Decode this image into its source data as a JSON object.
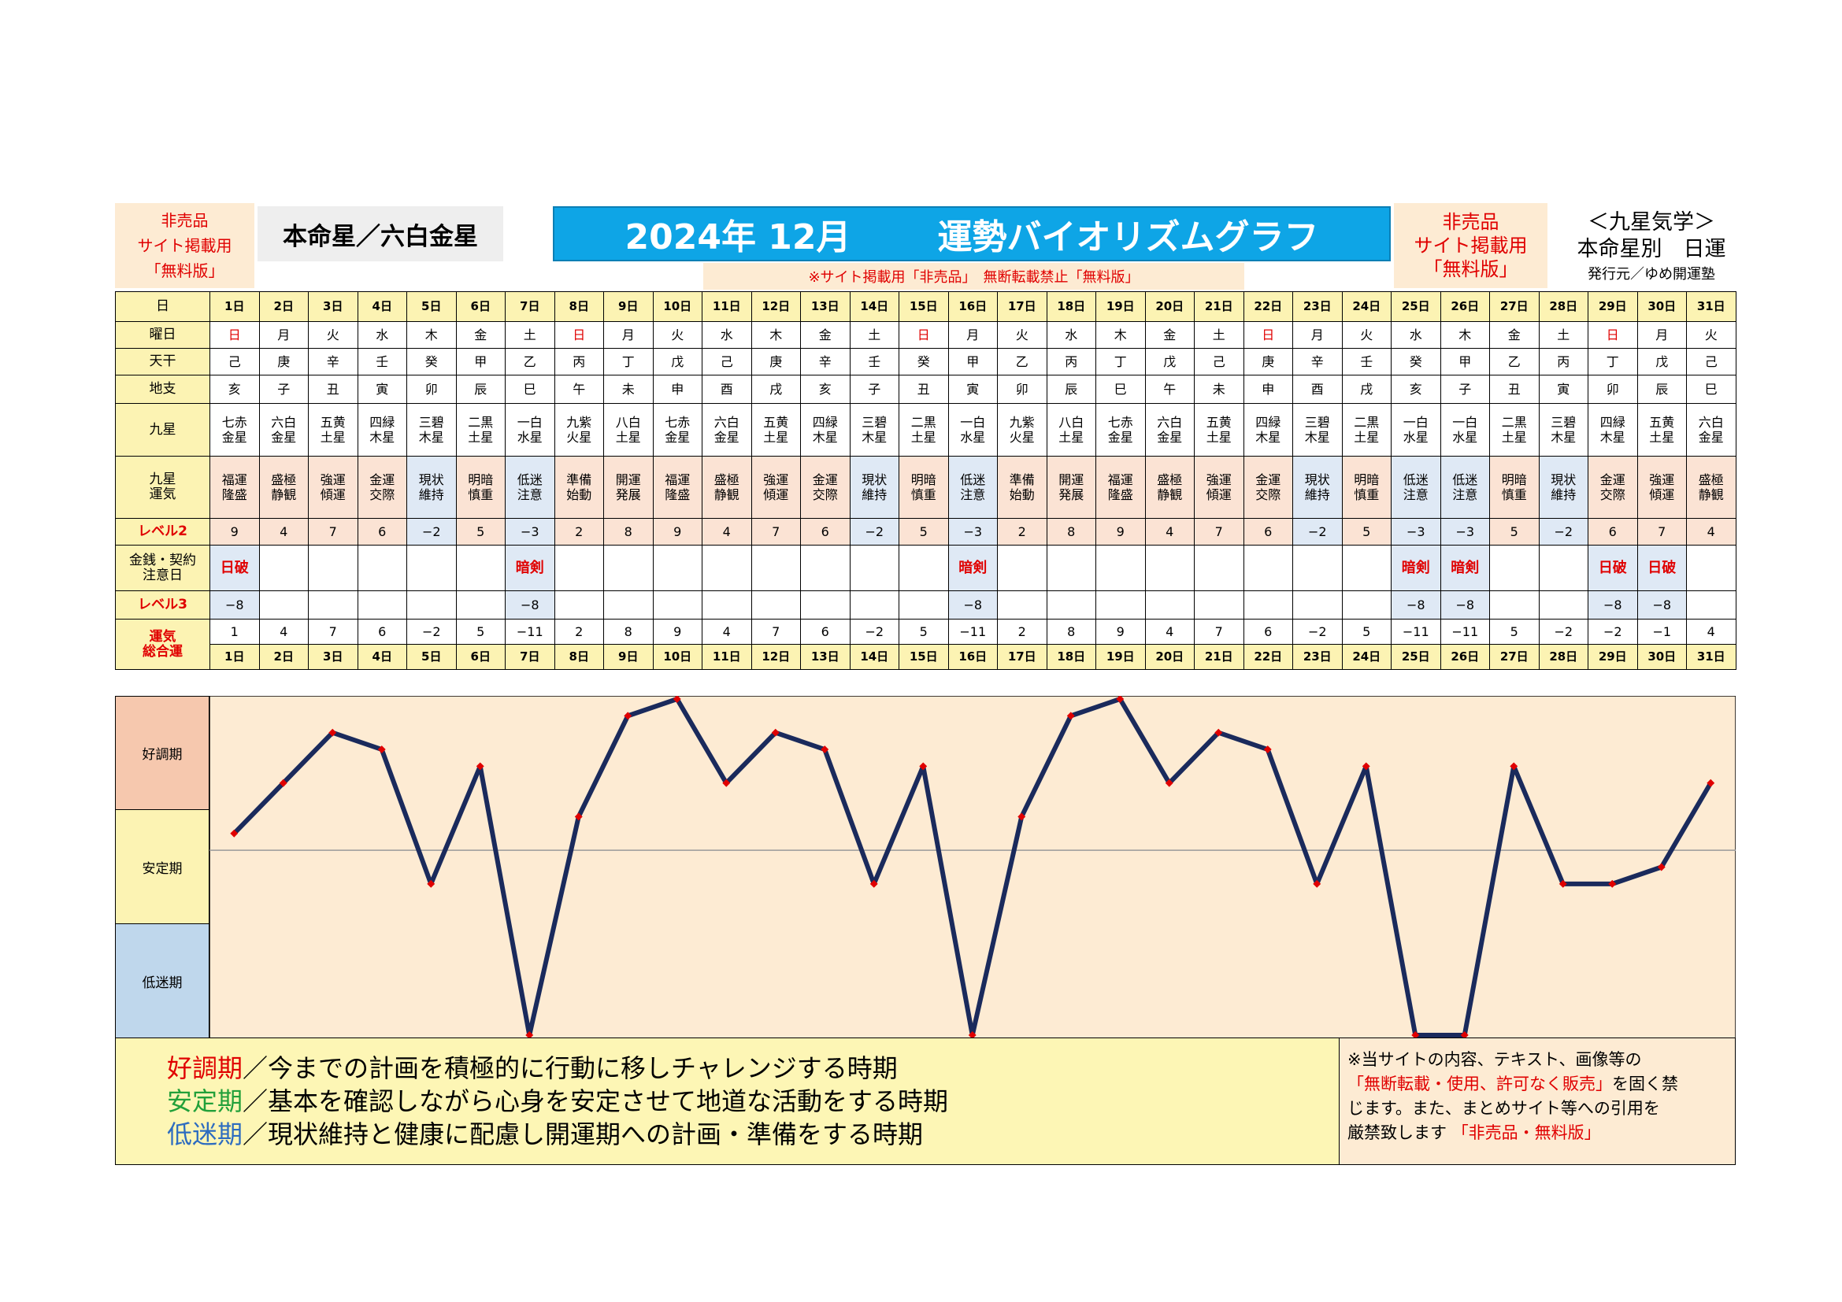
{
  "header": {
    "left_badge": [
      "非売品",
      "サイト掲載用",
      "「無料版」"
    ],
    "honmei": "本命星／六白金星",
    "title_year_month": "2024年 12月",
    "title_main": "運勢バイオリズムグラフ",
    "notice": "※サイト掲載用「非売品」　無断転載禁止「無料版」",
    "right_badge": [
      "非売品",
      "サイト掲載用",
      "「無料版」"
    ],
    "right_title": "＜九星気学＞",
    "right_subtitle": "本命星別　日運",
    "publisher": "発行元／ゆめ開運塾"
  },
  "row_labels": {
    "day": "日",
    "weekday": "曜日",
    "tenkan": "天干",
    "chishi": "地支",
    "kusei": "九星",
    "kusei_unki": [
      "九星",
      "運気"
    ],
    "level2": "レベル2",
    "money": [
      "金銭・契約",
      "注意日"
    ],
    "level3": "レベル3",
    "total": [
      "運気",
      "総合運"
    ]
  },
  "days": [
    "1日",
    "2日",
    "3日",
    "4日",
    "5日",
    "6日",
    "7日",
    "8日",
    "9日",
    "10日",
    "11日",
    "12日",
    "13日",
    "14日",
    "15日",
    "16日",
    "17日",
    "18日",
    "19日",
    "20日",
    "21日",
    "22日",
    "23日",
    "24日",
    "25日",
    "26日",
    "27日",
    "28日",
    "29日",
    "30日",
    "31日"
  ],
  "weekdays": [
    "日",
    "月",
    "火",
    "水",
    "木",
    "金",
    "土",
    "日",
    "月",
    "火",
    "水",
    "木",
    "金",
    "土",
    "日",
    "月",
    "火",
    "水",
    "木",
    "金",
    "土",
    "日",
    "月",
    "火",
    "水",
    "木",
    "金",
    "土",
    "日",
    "月",
    "火"
  ],
  "tenkan": [
    "己",
    "庚",
    "辛",
    "壬",
    "癸",
    "甲",
    "乙",
    "丙",
    "丁",
    "戊",
    "己",
    "庚",
    "辛",
    "壬",
    "癸",
    "甲",
    "乙",
    "丙",
    "丁",
    "戊",
    "己",
    "庚",
    "辛",
    "壬",
    "癸",
    "甲",
    "乙",
    "丙",
    "丁",
    "戊",
    "己"
  ],
  "chishi": [
    "亥",
    "子",
    "丑",
    "寅",
    "卯",
    "辰",
    "巳",
    "午",
    "未",
    "申",
    "酉",
    "戌",
    "亥",
    "子",
    "丑",
    "寅",
    "卯",
    "辰",
    "巳",
    "午",
    "未",
    "申",
    "酉",
    "戌",
    "亥",
    "子",
    "丑",
    "寅",
    "卯",
    "辰",
    "巳"
  ],
  "kusei": [
    [
      "七赤",
      "金星"
    ],
    [
      "六白",
      "金星"
    ],
    [
      "五黄",
      "土星"
    ],
    [
      "四緑",
      "木星"
    ],
    [
      "三碧",
      "木星"
    ],
    [
      "二黒",
      "土星"
    ],
    [
      "一白",
      "水星"
    ],
    [
      "九紫",
      "火星"
    ],
    [
      "八白",
      "土星"
    ],
    [
      "七赤",
      "金星"
    ],
    [
      "六白",
      "金星"
    ],
    [
      "五黄",
      "土星"
    ],
    [
      "四緑",
      "木星"
    ],
    [
      "三碧",
      "木星"
    ],
    [
      "二黒",
      "土星"
    ],
    [
      "一白",
      "水星"
    ],
    [
      "九紫",
      "火星"
    ],
    [
      "八白",
      "土星"
    ],
    [
      "七赤",
      "金星"
    ],
    [
      "六白",
      "金星"
    ],
    [
      "五黄",
      "土星"
    ],
    [
      "四緑",
      "木星"
    ],
    [
      "三碧",
      "木星"
    ],
    [
      "二黒",
      "土星"
    ],
    [
      "一白",
      "水星"
    ],
    [
      "一白",
      "水星"
    ],
    [
      "二黒",
      "土星"
    ],
    [
      "三碧",
      "木星"
    ],
    [
      "四緑",
      "木星"
    ],
    [
      "五黄",
      "土星"
    ],
    [
      "六白",
      "金星"
    ]
  ],
  "unki": [
    [
      "福運",
      "隆盛"
    ],
    [
      "盛極",
      "静観"
    ],
    [
      "強運",
      "傾運"
    ],
    [
      "金運",
      "交際"
    ],
    [
      "現状",
      "維持"
    ],
    [
      "明暗",
      "慎重"
    ],
    [
      "低迷",
      "注意"
    ],
    [
      "準備",
      "始動"
    ],
    [
      "開運",
      "発展"
    ],
    [
      "福運",
      "隆盛"
    ],
    [
      "盛極",
      "静観"
    ],
    [
      "強運",
      "傾運"
    ],
    [
      "金運",
      "交際"
    ],
    [
      "現状",
      "維持"
    ],
    [
      "明暗",
      "慎重"
    ],
    [
      "低迷",
      "注意"
    ],
    [
      "準備",
      "始動"
    ],
    [
      "開運",
      "発展"
    ],
    [
      "福運",
      "隆盛"
    ],
    [
      "盛極",
      "静観"
    ],
    [
      "強運",
      "傾運"
    ],
    [
      "金運",
      "交際"
    ],
    [
      "現状",
      "維持"
    ],
    [
      "明暗",
      "慎重"
    ],
    [
      "低迷",
      "注意"
    ],
    [
      "低迷",
      "注意"
    ],
    [
      "明暗",
      "慎重"
    ],
    [
      "現状",
      "維持"
    ],
    [
      "金運",
      "交際"
    ],
    [
      "強運",
      "傾運"
    ],
    [
      "盛極",
      "静観"
    ]
  ],
  "level2": [
    "9",
    "4",
    "7",
    "6",
    "−2",
    "5",
    "−3",
    "2",
    "8",
    "9",
    "4",
    "7",
    "6",
    "−2",
    "5",
    "−3",
    "2",
    "8",
    "9",
    "4",
    "7",
    "6",
    "−2",
    "5",
    "−3",
    "−3",
    "5",
    "−2",
    "6",
    "7",
    "4"
  ],
  "money": [
    "日破",
    "",
    "",
    "",
    "",
    "",
    "暗剣",
    "",
    "",
    "",
    "",
    "",
    "",
    "",
    "",
    "暗剣",
    "",
    "",
    "",
    "",
    "",
    "",
    "",
    "",
    "暗剣",
    "暗剣",
    "",
    "",
    "日破",
    "日破",
    ""
  ],
  "level3": [
    "−8",
    "",
    "",
    "",
    "",
    "",
    "−8",
    "",
    "",
    "",
    "",
    "",
    "",
    "",
    "",
    "−8",
    "",
    "",
    "",
    "",
    "",
    "",
    "",
    "",
    "−8",
    "−8",
    "",
    "",
    "−8",
    "−8",
    ""
  ],
  "total": [
    "1",
    "4",
    "7",
    "6",
    "−2",
    "5",
    "−11",
    "2",
    "8",
    "9",
    "4",
    "7",
    "6",
    "−2",
    "5",
    "−11",
    "2",
    "8",
    "9",
    "4",
    "7",
    "6",
    "−2",
    "5",
    "−11",
    "−11",
    "5",
    "−2",
    "−2",
    "−1",
    "4"
  ],
  "phases": {
    "good": "好調期",
    "stable": "安定期",
    "low": "低迷期"
  },
  "legend": {
    "good": {
      "term": "好調期",
      "text": "／今までの計画を積極的に行動に移しチャレンジする時期"
    },
    "stable": {
      "term": "安定期",
      "text": "／基本を確認しながら心身を安定させて地道な活動をする時期"
    },
    "low": {
      "term": "低迷期",
      "text": "／現状維持と健康に配慮し開運期への計画・準備をする時期"
    }
  },
  "disclaimer": {
    "line1": "※当サイトの内容、テキスト、画像等の",
    "line2_red": "「無断転載・使用、許可なく販売」",
    "line2_rest": "を固く禁",
    "line3": "じます。また、まとめサイト等への引用を",
    "line4": "厳禁致します",
    "line4_red": "「非売品・無料版」"
  },
  "colors": {
    "line": "#1a2a5c",
    "marker": "#e00000",
    "plot_bg": "#fdebd3",
    "title_bg": "#0ea5e6"
  },
  "chart_data": {
    "type": "line",
    "x": [
      1,
      2,
      3,
      4,
      5,
      6,
      7,
      8,
      9,
      10,
      11,
      12,
      13,
      14,
      15,
      16,
      17,
      18,
      19,
      20,
      21,
      22,
      23,
      24,
      25,
      26,
      27,
      28,
      29,
      30,
      31
    ],
    "series": [
      {
        "values": [
          1,
          4,
          7,
          6,
          -2,
          5,
          -11,
          2,
          8,
          9,
          4,
          7,
          6,
          -2,
          5,
          -11,
          2,
          8,
          9,
          4,
          7,
          6,
          -2,
          5,
          -11,
          -11,
          5,
          -2,
          -2,
          -1,
          4
        ]
      }
    ],
    "ylim": [
      -11,
      9
    ],
    "grid": false,
    "baseline": 0
  }
}
